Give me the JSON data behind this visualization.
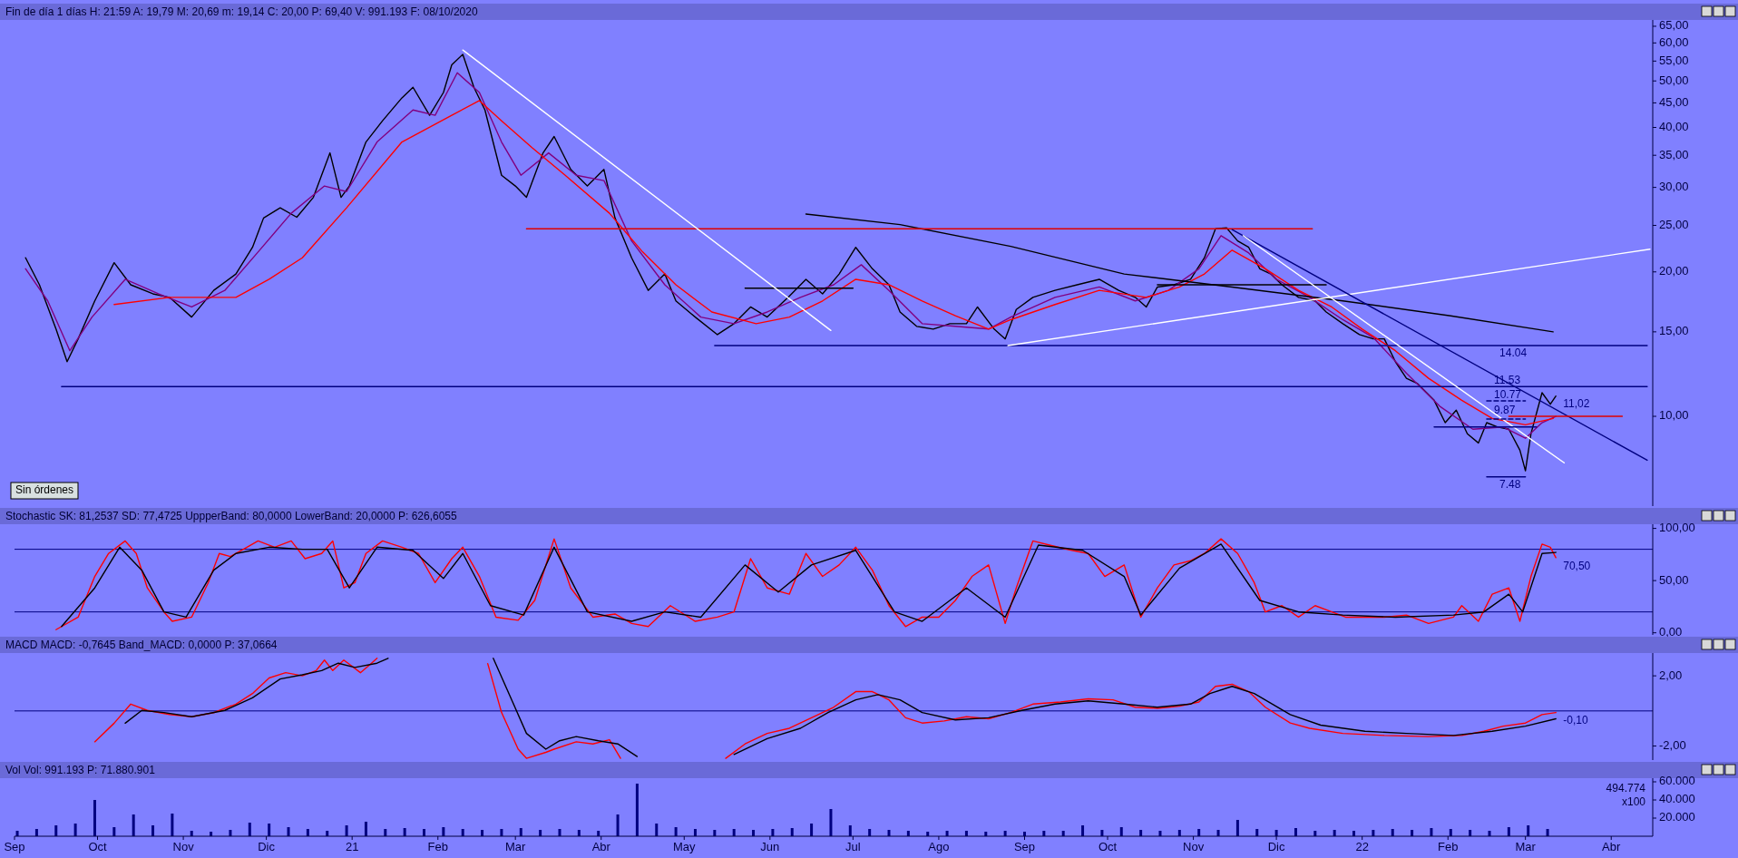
{
  "chart_data": [
    {
      "type": "line",
      "title": "Fin de día 1 días H: 21:59 A: 19,79 M: 20,69 m: 19,14 C: 20,00 P: 69,40 V: 991.193 F: 08/10/2020",
      "log": true,
      "tick_labels": "y",
      "xlim": [
        "2020-09-01",
        "2022-04-16"
      ],
      "ylim": [
        6.5,
        67
      ],
      "yticks": [
        {
          "value": 10,
          "label": "10,00"
        },
        {
          "value": 15,
          "label": "15,00"
        },
        {
          "value": 20,
          "label": "20,00"
        },
        {
          "value": 25,
          "label": "25,00"
        },
        {
          "value": 30,
          "label": "30,00"
        },
        {
          "value": 35,
          "label": "35,00"
        },
        {
          "value": 40,
          "label": "40,00"
        },
        {
          "value": 45,
          "label": "45,00"
        },
        {
          "value": 50,
          "label": "50,00"
        },
        {
          "value": 55,
          "label": "55,00"
        },
        {
          "value": 60,
          "label": "60,00"
        },
        {
          "value": 65,
          "label": "65,00"
        }
      ],
      "series": [
        {
          "color": "#000000",
          "x": [
            "2020-09-05",
            "2020-09-10",
            "2020-09-16",
            "2020-09-20",
            "2020-09-24",
            "2020-09-30",
            "2020-10-07",
            "2020-10-13",
            "2020-10-21",
            "2020-10-27",
            "2020-11-04",
            "2020-11-12",
            "2020-11-20",
            "2020-11-26",
            "2020-11-30",
            "2020-12-06",
            "2020-12-12",
            "2020-12-18",
            "2020-12-24",
            "2020-12-28",
            "2020-12-31",
            "2021-01-06",
            "2021-01-12",
            "2021-01-19",
            "2021-01-23",
            "2021-01-29",
            "2021-02-03",
            "2021-02-06",
            "2021-02-10",
            "2021-02-14",
            "2021-02-18",
            "2021-02-24",
            "2021-03-01",
            "2021-03-05",
            "2021-03-11",
            "2021-03-15",
            "2021-03-21",
            "2021-03-27",
            "2021-04-02",
            "2021-04-06",
            "2021-04-12",
            "2021-04-18",
            "2021-04-24",
            "2021-04-28",
            "2021-05-05",
            "2021-05-13",
            "2021-05-19",
            "2021-05-25",
            "2021-05-31",
            "2021-06-08",
            "2021-06-14",
            "2021-06-20",
            "2021-06-26",
            "2021-07-02",
            "2021-07-08",
            "2021-07-14",
            "2021-07-18",
            "2021-07-24",
            "2021-07-30",
            "2021-08-05",
            "2021-08-11",
            "2021-08-15",
            "2021-08-21",
            "2021-08-25",
            "2021-08-29",
            "2021-09-04",
            "2021-09-12",
            "2021-09-20",
            "2021-09-28",
            "2021-10-05",
            "2021-10-11",
            "2021-10-15",
            "2021-10-19",
            "2021-10-25",
            "2021-10-31",
            "2021-11-05",
            "2021-11-09",
            "2021-11-13",
            "2021-11-17",
            "2021-11-21",
            "2021-11-25",
            "2021-11-29",
            "2021-12-03",
            "2021-12-09",
            "2021-12-15",
            "2021-12-19",
            "2021-12-25",
            "2021-12-31",
            "2022-01-05",
            "2022-01-09",
            "2022-01-13",
            "2022-01-17",
            "2022-01-21",
            "2022-01-27",
            "2022-01-31",
            "2022-02-04",
            "2022-02-08",
            "2022-02-12",
            "2022-02-15",
            "2022-02-19",
            "2022-02-23",
            "2022-02-27",
            "2022-03-01",
            "2022-03-03",
            "2022-03-07",
            "2022-03-10",
            "2022-03-12"
          ],
          "values": [
            21.4,
            18.8,
            15.2,
            13.0,
            14.5,
            17.4,
            20.9,
            18.8,
            18.0,
            17.7,
            16.1,
            18.3,
            19.8,
            22.5,
            25.9,
            27.2,
            26.0,
            28.6,
            35.4,
            28.6,
            30.2,
            37.3,
            41.3,
            46.1,
            48.5,
            42.4,
            47.3,
            54.0,
            56.8,
            48.5,
            43.5,
            31.8,
            30.2,
            28.6,
            35.4,
            38.3,
            32.7,
            30.2,
            32.7,
            25.9,
            21.4,
            18.3,
            19.8,
            17.4,
            16.1,
            14.8,
            15.6,
            16.9,
            16.1,
            17.8,
            19.3,
            18.0,
            19.8,
            22.5,
            20.3,
            18.8,
            16.5,
            15.4,
            15.2,
            15.6,
            15.6,
            16.9,
            15.2,
            14.5,
            16.7,
            17.7,
            18.3,
            18.8,
            19.3,
            18.3,
            17.7,
            16.9,
            18.6,
            18.8,
            19.3,
            21.4,
            24.6,
            24.7,
            23.2,
            22.5,
            20.3,
            19.8,
            18.8,
            17.7,
            17.4,
            16.5,
            15.6,
            14.8,
            14.5,
            14.5,
            13.0,
            12.0,
            11.7,
            10.8,
            9.7,
            10.3,
            9.2,
            8.8,
            9.7,
            9.5,
            9.4,
            8.5,
            7.7,
            9.2,
            11.2,
            10.6,
            11.02
          ]
        },
        {
          "color": "#800080",
          "x": [
            "2020-09-05",
            "2020-09-13",
            "2020-09-21",
            "2020-09-29",
            "2020-10-11",
            "2020-10-23",
            "2020-11-04",
            "2020-11-16",
            "2020-11-28",
            "2020-12-10",
            "2020-12-22",
            "2020-12-30",
            "2021-01-10",
            "2021-01-23",
            "2021-01-31",
            "2021-02-08",
            "2021-02-16",
            "2021-02-24",
            "2021-03-03",
            "2021-03-13",
            "2021-03-23",
            "2021-04-02",
            "2021-04-12",
            "2021-04-24",
            "2021-05-07",
            "2021-05-19",
            "2021-05-31",
            "2021-06-12",
            "2021-06-24",
            "2021-07-04",
            "2021-07-14",
            "2021-07-26",
            "2021-08-07",
            "2021-08-19",
            "2021-08-27",
            "2021-09-12",
            "2021-09-28",
            "2021-10-11",
            "2021-10-23",
            "2021-11-03",
            "2021-11-11",
            "2021-11-21",
            "2021-12-01",
            "2021-12-13",
            "2021-12-25",
            "2022-01-05",
            "2022-01-17",
            "2022-01-29",
            "2022-02-10",
            "2022-02-21",
            "2022-03-01",
            "2022-03-07",
            "2022-03-12"
          ],
          "values": [
            20.3,
            17.4,
            13.7,
            16.1,
            19.3,
            18.0,
            16.9,
            18.3,
            22.0,
            26.5,
            30.2,
            29.4,
            37.3,
            43.5,
            42.4,
            52.0,
            47.3,
            37.3,
            31.8,
            35.4,
            31.8,
            31.0,
            23.2,
            18.8,
            16.1,
            15.6,
            16.5,
            17.7,
            18.8,
            20.7,
            18.3,
            15.6,
            15.4,
            15.2,
            16.1,
            17.7,
            18.6,
            17.4,
            18.3,
            20.3,
            23.8,
            21.9,
            19.3,
            17.7,
            15.9,
            14.6,
            12.3,
            10.5,
            9.4,
            9.5,
            9.0,
            9.7,
            10.0
          ]
        },
        {
          "color": "#ff0000",
          "x": [
            "2020-10-07",
            "2020-10-27",
            "2020-11-20",
            "2020-12-02",
            "2020-12-14",
            "2020-12-30",
            "2021-01-19",
            "2021-02-06",
            "2021-02-16",
            "2021-02-24",
            "2021-03-07",
            "2021-03-19",
            "2021-04-04",
            "2021-04-16",
            "2021-04-28",
            "2021-05-11",
            "2021-05-27",
            "2021-06-08",
            "2021-06-20",
            "2021-07-02",
            "2021-07-14",
            "2021-07-26",
            "2021-08-07",
            "2021-08-19",
            "2021-08-27",
            "2021-09-12",
            "2021-09-28",
            "2021-10-15",
            "2021-10-27",
            "2021-11-05",
            "2021-11-15",
            "2021-11-27",
            "2021-12-09",
            "2021-12-21",
            "2022-01-01",
            "2022-01-13",
            "2022-01-25",
            "2022-02-06",
            "2022-02-17",
            "2022-03-01",
            "2022-03-11"
          ],
          "values": [
            17.1,
            17.7,
            17.7,
            19.3,
            21.4,
            27.2,
            37.3,
            42.4,
            45.5,
            41.3,
            36.3,
            31.8,
            26.5,
            22.0,
            18.8,
            16.5,
            15.6,
            16.1,
            17.4,
            19.3,
            18.8,
            17.4,
            16.2,
            15.2,
            15.9,
            17.1,
            18.3,
            17.7,
            18.6,
            19.8,
            22.2,
            20.3,
            18.3,
            16.9,
            15.2,
            13.7,
            12.0,
            10.8,
            9.9,
            9.6,
            9.9
          ]
        },
        {
          "color": "#000000",
          "x": [
            "2021-06-14",
            "2021-07-18",
            "2021-08-27",
            "2021-10-07",
            "2021-11-15",
            "2021-12-25",
            "2022-02-02",
            "2022-03-11"
          ],
          "values": [
            26.4,
            25.1,
            22.6,
            19.8,
            18.6,
            17.4,
            16.2,
            15.0
          ]
        },
        {
          "color": "#e00000",
          "x": [
            "2021-03-05",
            "2021-12-14"
          ],
          "values": [
            24.6,
            24.6
          ]
        },
        {
          "color": "#000080",
          "x": [
            "2020-09-18",
            "2022-04-14"
          ],
          "values": [
            11.53,
            11.53
          ]
        },
        {
          "color": "#000080",
          "x": [
            "2021-05-12",
            "2022-04-14"
          ],
          "values": [
            14.04,
            14.04
          ]
        },
        {
          "color": "#000000",
          "x": [
            "2021-05-23",
            "2021-07-01"
          ],
          "values": [
            18.5,
            18.5
          ]
        },
        {
          "color": "#000000",
          "x": [
            "2021-10-19",
            "2021-12-19"
          ],
          "values": [
            18.8,
            18.8
          ]
        },
        {
          "color": "#ffffff",
          "x": [
            "2021-02-10",
            "2021-06-23"
          ],
          "values": [
            58.0,
            15.1
          ]
        },
        {
          "color": "#ffffff",
          "x": [
            "2021-08-26",
            "2022-04-15"
          ],
          "values": [
            14.04,
            22.3
          ]
        },
        {
          "color": "#000080",
          "x": [
            "2021-11-15",
            "2022-04-14"
          ],
          "values": [
            24.5,
            8.1
          ]
        },
        {
          "color": "#ffffff",
          "x": [
            "2021-11-19",
            "2022-03-15"
          ],
          "values": [
            23.8,
            8.0
          ]
        },
        {
          "color": "#e00000",
          "x": [
            "2022-02-23",
            "2022-04-05"
          ],
          "values": [
            10.0,
            10.0
          ]
        },
        {
          "color": "#000080",
          "x": [
            "2022-01-27",
            "2022-03-05"
          ],
          "values": [
            9.5,
            9.5
          ]
        },
        {
          "color": "#000080",
          "x": [
            "2022-02-15",
            "2022-03-01"
          ],
          "values": [
            10.77,
            10.77
          ],
          "line_style": "dashed"
        },
        {
          "color": "#000080",
          "x": [
            "2022-02-15",
            "2022-03-01"
          ],
          "values": [
            9.87,
            9.87
          ],
          "line_style": "dashed"
        },
        {
          "color": "#000080",
          "x": [
            "2022-02-15",
            "2022-03-01"
          ],
          "values": [
            7.48,
            7.48
          ]
        }
      ],
      "annotations": [
        "Sin órdenes",
        {
          "text": "14.04",
          "x": "2022-02-17",
          "y": 14.04
        },
        {
          "text": "11.53",
          "x": "2022-02-15",
          "y": 11.53
        },
        {
          "text": "10.77",
          "x": "2022-02-15",
          "y": 10.77
        },
        {
          "text": "9.87",
          "x": "2022-02-15",
          "y": 9.87
        },
        {
          "text": "7.48",
          "x": "2022-02-17",
          "y": 7.48
        },
        {
          "text": "11,02",
          "x": "2022-03-12",
          "y": 11.02
        }
      ]
    },
    {
      "type": "line",
      "title": "Stochastic SK: 81,2537 SD: 77,4725 UppperBand: 80,0000 LowerBand: 20,0000 P: 626,6055",
      "tick_labels": "y",
      "xlim": [
        "2020-09-01",
        "2022-04-16"
      ],
      "ylim": [
        -2,
        104
      ],
      "yticks": [
        {
          "value": 0,
          "label": "0,00"
        },
        {
          "value": 50,
          "label": "50,00"
        },
        {
          "value": 100,
          "label": "100,00"
        }
      ],
      "ref_lines": [
        {
          "axis": "y",
          "value": 80,
          "color": "#000080"
        },
        {
          "axis": "y",
          "value": 20,
          "color": "#000080"
        }
      ],
      "series": [
        {
          "color": "#ff0000",
          "x": [
            "2020-09-16",
            "2020-09-24",
            "2020-09-30",
            "2020-10-05",
            "2020-10-11",
            "2020-10-15",
            "2020-10-19",
            "2020-10-25",
            "2020-10-28",
            "2020-11-04",
            "2020-11-10",
            "2020-11-14",
            "2020-11-18",
            "2020-11-24",
            "2020-11-28",
            "2020-12-04",
            "2020-12-10",
            "2020-12-15",
            "2020-12-21",
            "2020-12-25",
            "2020-12-29",
            "2021-01-02",
            "2021-01-06",
            "2021-01-12",
            "2021-01-19",
            "2021-01-25",
            "2021-01-31",
            "2021-02-06",
            "2021-02-10",
            "2021-02-16",
            "2021-02-22",
            "2021-03-02",
            "2021-03-08",
            "2021-03-15",
            "2021-03-21",
            "2021-03-29",
            "2021-04-06",
            "2021-04-12",
            "2021-04-18",
            "2021-04-26",
            "2021-05-05",
            "2021-05-13",
            "2021-05-19",
            "2021-05-25",
            "2021-05-31",
            "2021-06-08",
            "2021-06-14",
            "2021-06-20",
            "2021-06-26",
            "2021-07-02",
            "2021-07-08",
            "2021-07-14",
            "2021-07-20",
            "2021-07-26",
            "2021-08-01",
            "2021-08-07",
            "2021-08-13",
            "2021-08-19",
            "2021-08-25",
            "2021-08-29",
            "2021-09-04",
            "2021-09-10",
            "2021-09-18",
            "2021-09-24",
            "2021-09-30",
            "2021-10-07",
            "2021-10-13",
            "2021-10-19",
            "2021-10-25",
            "2021-10-31",
            "2021-11-05",
            "2021-11-11",
            "2021-11-17",
            "2021-11-23",
            "2021-11-27",
            "2021-12-03",
            "2021-12-09",
            "2021-12-15",
            "2021-12-21",
            "2021-12-26",
            "2022-01-02",
            "2022-01-09",
            "2022-01-17",
            "2022-01-25",
            "2022-02-03",
            "2022-02-06",
            "2022-02-12",
            "2022-02-17",
            "2022-02-23",
            "2022-02-27",
            "2022-03-03",
            "2022-03-07",
            "2022-03-10",
            "2022-03-12"
          ],
          "values": [
            3,
            15,
            54,
            76,
            88,
            76,
            43,
            20,
            11,
            15,
            48,
            76,
            73,
            82,
            88,
            82,
            88,
            71,
            76,
            88,
            43,
            48,
            76,
            88,
            82,
            76,
            48,
            71,
            82,
            54,
            15,
            12,
            31,
            90,
            43,
            15,
            18,
            9,
            6,
            26,
            11,
            15,
            20,
            71,
            43,
            37,
            76,
            54,
            65,
            82,
            60,
            26,
            6,
            15,
            15,
            31,
            54,
            65,
            9,
            43,
            88,
            84,
            79,
            76,
            54,
            65,
            15,
            43,
            65,
            69,
            76,
            90,
            76,
            48,
            20,
            26,
            15,
            26,
            20,
            15,
            15,
            15,
            17,
            9,
            15,
            26,
            11,
            37,
            43,
            11,
            54,
            85,
            82,
            72
          ]
        },
        {
          "color": "#000000",
          "x": [
            "2020-09-18",
            "2020-09-30",
            "2020-10-09",
            "2020-10-17",
            "2020-10-25",
            "2020-11-02",
            "2020-11-12",
            "2020-11-20",
            "2020-12-02",
            "2020-12-14",
            "2020-12-23",
            "2020-12-31",
            "2021-01-10",
            "2021-01-23",
            "2021-02-03",
            "2021-02-10",
            "2021-02-20",
            "2021-03-04",
            "2021-03-15",
            "2021-03-27",
            "2021-04-12",
            "2021-04-24",
            "2021-05-07",
            "2021-05-23",
            "2021-06-04",
            "2021-06-16",
            "2021-07-02",
            "2021-07-16",
            "2021-07-26",
            "2021-08-11",
            "2021-08-25",
            "2021-09-06",
            "2021-09-22",
            "2021-10-07",
            "2021-10-13",
            "2021-10-27",
            "2021-11-11",
            "2021-11-25",
            "2021-12-09",
            "2021-12-25",
            "2022-01-13",
            "2022-02-03",
            "2022-02-14",
            "2022-02-23",
            "2022-02-28",
            "2022-03-07",
            "2022-03-12"
          ],
          "values": [
            6,
            43,
            82,
            60,
            20,
            15,
            60,
            76,
            82,
            80,
            80,
            43,
            82,
            79,
            52,
            76,
            26,
            17,
            82,
            20,
            11,
            20,
            15,
            65,
            39,
            65,
            79,
            20,
            11,
            43,
            15,
            84,
            79,
            54,
            17,
            62,
            85,
            31,
            20,
            17,
            15,
            17,
            20,
            37,
            20,
            76,
            77
          ]
        }
      ],
      "annotations": [
        {
          "text": "70,50",
          "x": "2022-03-12",
          "y": 70.5
        }
      ]
    },
    {
      "type": "line",
      "title": "MACD MACD: -0,7645 Band_MACD: 0,0000 P: 37,0664",
      "tick_labels": "y",
      "xlim": [
        "2020-09-01",
        "2022-04-16"
      ],
      "ylim": [
        -2.8,
        3.3
      ],
      "yticks": [
        {
          "value": -2,
          "label": "-2,00"
        },
        {
          "value": 2,
          "label": "2,00"
        }
      ],
      "ref_lines": [
        {
          "axis": "y",
          "value": 0,
          "color": "#000080"
        }
      ],
      "series": [
        {
          "color": "#ff0000",
          "x": [
            "2020-09-30",
            "2020-10-07",
            "2020-10-13",
            "2020-10-19",
            "2020-10-27",
            "2020-11-04",
            "2020-11-12",
            "2020-11-20",
            "2020-11-26",
            "2020-12-02",
            "2020-12-08",
            "2020-12-14",
            "2020-12-19",
            "2020-12-22",
            "2020-12-25",
            "2020-12-29",
            "2021-01-04",
            "2021-01-08",
            "2021-01-10",
            "2021-01-20",
            "2021-02-19",
            "2021-02-24",
            "2021-03-02",
            "2021-03-05",
            "2021-03-12",
            "2021-03-15",
            "2021-03-23",
            "2021-03-29",
            "2021-04-04",
            "2021-04-08",
            "2021-04-20",
            "2021-05-16",
            "2021-05-23",
            "2021-05-31",
            "2021-06-08",
            "2021-06-16",
            "2021-06-24",
            "2021-07-02",
            "2021-07-08",
            "2021-07-14",
            "2021-07-20",
            "2021-07-26",
            "2021-08-03",
            "2021-08-11",
            "2021-08-19",
            "2021-08-27",
            "2021-09-04",
            "2021-09-14",
            "2021-09-24",
            "2021-10-03",
            "2021-10-11",
            "2021-10-19",
            "2021-10-27",
            "2021-11-03",
            "2021-11-09",
            "2021-11-15",
            "2021-11-21",
            "2021-11-27",
            "2021-12-06",
            "2021-12-13",
            "2021-12-25",
            "2022-01-09",
            "2022-01-25",
            "2022-02-06",
            "2022-02-14",
            "2022-02-21",
            "2022-03-01",
            "2022-03-07",
            "2022-03-12"
          ],
          "values": [
            -1.76,
            -0.7,
            0.39,
            0.03,
            -0.2,
            -0.33,
            -0.1,
            0.39,
            0.99,
            1.88,
            2.18,
            2.0,
            2.3,
            2.9,
            2.3,
            2.9,
            2.18,
            2.72,
            3.0,
            null,
            2.7,
            -0.09,
            -2.18,
            -2.7,
            -2.36,
            -2.18,
            -1.76,
            -1.88,
            -1.64,
            -2.7,
            null,
            -2.7,
            -1.88,
            -1.28,
            -0.99,
            -0.39,
            0.21,
            1.1,
            1.1,
            0.63,
            -0.39,
            -0.69,
            -0.57,
            -0.33,
            -0.45,
            -0.09,
            0.39,
            0.51,
            0.69,
            0.63,
            0.21,
            0.15,
            0.27,
            0.51,
            1.4,
            1.52,
            1.1,
            0.21,
            -0.69,
            -0.99,
            -1.28,
            -1.4,
            -1.46,
            -1.4,
            -1.16,
            -0.87,
            -0.69,
            -0.21,
            -0.09
          ]
        },
        {
          "color": "#000000",
          "x": [
            "2020-10-11",
            "2020-10-17",
            "2020-10-25",
            "2020-11-04",
            "2020-11-16",
            "2020-11-26",
            "2020-12-06",
            "2020-12-14",
            "2020-12-21",
            "2020-12-27",
            "2021-01-02",
            "2021-01-10",
            "2021-01-14",
            "2021-01-30",
            "2021-02-21",
            "2021-02-28",
            "2021-03-05",
            "2021-03-12",
            "2021-03-17",
            "2021-03-23",
            "2021-03-31",
            "2021-04-07",
            "2021-04-14",
            "2021-05-01",
            "2021-05-19",
            "2021-05-31",
            "2021-06-12",
            "2021-06-22",
            "2021-07-02",
            "2021-07-10",
            "2021-07-18",
            "2021-07-26",
            "2021-08-07",
            "2021-08-19",
            "2021-08-31",
            "2021-09-12",
            "2021-09-24",
            "2021-10-07",
            "2021-10-19",
            "2021-10-31",
            "2021-11-07",
            "2021-11-15",
            "2021-11-23",
            "2021-12-06",
            "2021-12-17",
            "2022-01-02",
            "2022-01-17",
            "2022-02-03",
            "2022-02-17",
            "2022-03-01",
            "2022-03-12"
          ],
          "values": [
            -0.7,
            0.03,
            -0.09,
            -0.33,
            0.03,
            0.75,
            1.82,
            2.06,
            2.3,
            2.72,
            2.48,
            2.72,
            3.0,
            null,
            3.0,
            0.51,
            -1.28,
            -2.18,
            -1.7,
            -1.46,
            -1.7,
            -1.88,
            -2.6,
            null,
            -2.48,
            -1.58,
            -0.99,
            -0.09,
            0.63,
            0.93,
            0.63,
            -0.09,
            -0.51,
            -0.39,
            0.03,
            0.39,
            0.57,
            0.39,
            0.21,
            0.39,
            0.99,
            1.4,
            0.99,
            -0.21,
            -0.81,
            -1.16,
            -1.28,
            -1.4,
            -1.16,
            -0.87,
            -0.45
          ]
        }
      ],
      "annotations": [
        {
          "text": "-0,10",
          "x": "2022-03-12",
          "y": -0.1
        }
      ]
    },
    {
      "type": "bar",
      "title": "Vol Vol: 991.193 P: 71.880.901",
      "xlim": [
        "2020-09-01",
        "2022-04-16"
      ],
      "ylim": [
        0,
        64000
      ],
      "color": "#000080",
      "yticks": [
        {
          "value": 20000,
          "label": "20.000"
        },
        {
          "value": 40000,
          "label": "40.000"
        },
        {
          "value": 60000,
          "label": "60.000"
        }
      ],
      "xticks": [
        {
          "value": "2020-09-01",
          "label": "Sep"
        },
        {
          "value": "2020-10-01",
          "label": "Oct"
        },
        {
          "value": "2020-11-01",
          "label": "Nov"
        },
        {
          "value": "2020-12-01",
          "label": "Dic"
        },
        {
          "value": "2021-01-01",
          "label": "21"
        },
        {
          "value": "2021-02-01",
          "label": "Feb"
        },
        {
          "value": "2021-03-01",
          "label": "Mar"
        },
        {
          "value": "2021-04-01",
          "label": "Abr"
        },
        {
          "value": "2021-05-01",
          "label": "May"
        },
        {
          "value": "2021-06-01",
          "label": "Jun"
        },
        {
          "value": "2021-07-01",
          "label": "Jul"
        },
        {
          "value": "2021-08-01",
          "label": "Ago"
        },
        {
          "value": "2021-09-01",
          "label": "Sep"
        },
        {
          "value": "2021-10-01",
          "label": "Oct"
        },
        {
          "value": "2021-11-01",
          "label": "Nov"
        },
        {
          "value": "2021-12-01",
          "label": "Dic"
        },
        {
          "value": "2022-01-01",
          "label": "22"
        },
        {
          "value": "2022-02-01",
          "label": "Feb"
        },
        {
          "value": "2022-03-01",
          "label": "Mar"
        },
        {
          "value": "2022-04-01",
          "label": "Abr"
        }
      ],
      "x": [
        "2020-09-02",
        "2020-09-09",
        "2020-09-16",
        "2020-09-23",
        "2020-09-30",
        "2020-10-07",
        "2020-10-14",
        "2020-10-21",
        "2020-10-28",
        "2020-11-04",
        "2020-11-11",
        "2020-11-18",
        "2020-11-25",
        "2020-12-02",
        "2020-12-09",
        "2020-12-16",
        "2020-12-23",
        "2020-12-30",
        "2021-01-06",
        "2021-01-13",
        "2021-01-20",
        "2021-01-27",
        "2021-02-03",
        "2021-02-10",
        "2021-02-17",
        "2021-02-24",
        "2021-03-03",
        "2021-03-10",
        "2021-03-17",
        "2021-03-24",
        "2021-03-31",
        "2021-04-07",
        "2021-04-14",
        "2021-04-21",
        "2021-04-28",
        "2021-05-05",
        "2021-05-12",
        "2021-05-19",
        "2021-05-26",
        "2021-06-02",
        "2021-06-09",
        "2021-06-16",
        "2021-06-23",
        "2021-06-30",
        "2021-07-07",
        "2021-07-14",
        "2021-07-21",
        "2021-07-28",
        "2021-08-04",
        "2021-08-11",
        "2021-08-18",
        "2021-08-25",
        "2021-09-01",
        "2021-09-08",
        "2021-09-15",
        "2021-09-22",
        "2021-09-29",
        "2021-10-06",
        "2021-10-13",
        "2021-10-20",
        "2021-10-27",
        "2021-11-03",
        "2021-11-10",
        "2021-11-17",
        "2021-11-24",
        "2021-12-01",
        "2021-12-08",
        "2021-12-15",
        "2021-12-22",
        "2021-12-29",
        "2022-01-05",
        "2022-01-12",
        "2022-01-19",
        "2022-01-26",
        "2022-02-02",
        "2022-02-09",
        "2022-02-16",
        "2022-02-23",
        "2022-03-02",
        "2022-03-09"
      ],
      "values": [
        6000,
        8000,
        12000,
        14000,
        40000,
        10000,
        24000,
        12000,
        25000,
        6000,
        5000,
        7000,
        15000,
        14000,
        10000,
        8000,
        6000,
        12000,
        16000,
        8000,
        9000,
        8000,
        10000,
        8000,
        7000,
        8000,
        9000,
        7000,
        8000,
        7000,
        6000,
        24000,
        58000,
        14000,
        10000,
        8000,
        7000,
        8000,
        7000,
        8000,
        9000,
        14000,
        30000,
        12000,
        8000,
        7000,
        6000,
        5000,
        6000,
        6000,
        5000,
        6000,
        5000,
        6000,
        6000,
        12000,
        7000,
        10000,
        7000,
        6000,
        7000,
        8000,
        7000,
        18000,
        8000,
        7000,
        9000,
        6000,
        7000,
        6000,
        7000,
        8000,
        7000,
        9000,
        8000,
        7000,
        6000,
        10000,
        12000,
        8000
      ],
      "annotations": [
        "494.774",
        "x100"
      ]
    }
  ]
}
